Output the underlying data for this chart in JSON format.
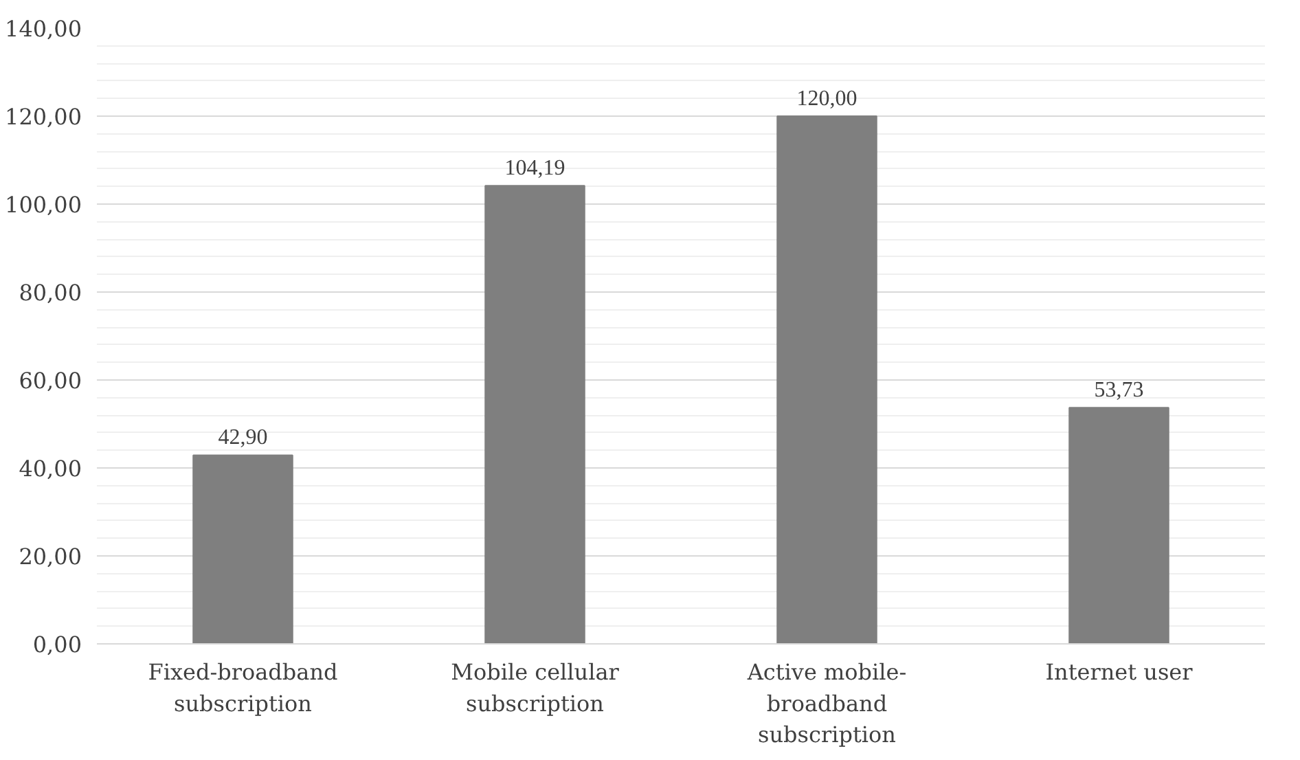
{
  "chart_data": {
    "type": "bar",
    "categories": [
      "Fixed-broadband\nsubscription",
      "Mobile cellular\nsubscription",
      "Active mobile-\nbroadband\nsubscription",
      "Internet user"
    ],
    "values": [
      42.9,
      104.19,
      120.0,
      53.73
    ],
    "value_labels": [
      "42,90",
      "104,19",
      "120,00",
      "53,73"
    ],
    "color": "#7f7f7f",
    "ylim": [
      0,
      140
    ],
    "yticks": [
      {
        "value": 0,
        "label": "0,00"
      },
      {
        "value": 20,
        "label": "20,00"
      },
      {
        "value": 40,
        "label": "40,00"
      },
      {
        "value": 60,
        "label": "60,00"
      },
      {
        "value": 80,
        "label": "80,00"
      },
      {
        "value": 100,
        "label": "100,00"
      },
      {
        "value": 120,
        "label": "120,00"
      },
      {
        "value": 140,
        "label": "140,00"
      }
    ],
    "grid": "y"
  }
}
